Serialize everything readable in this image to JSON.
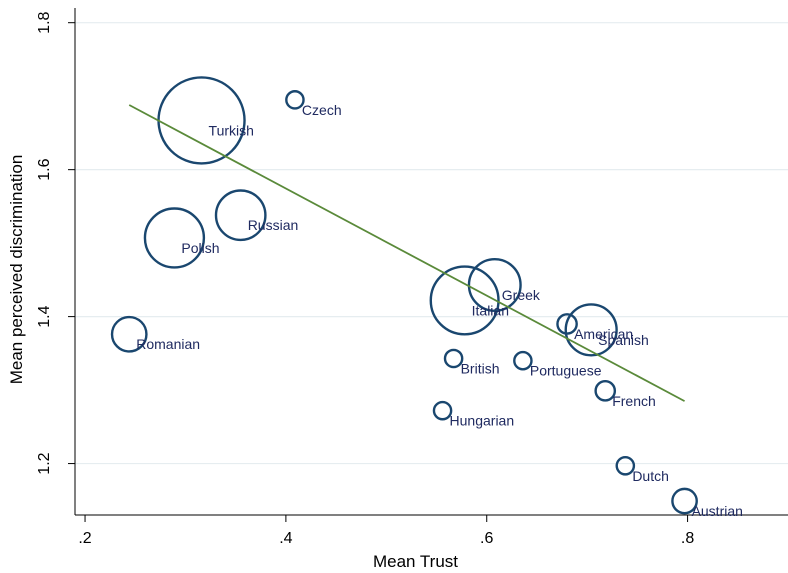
{
  "chart_data": {
    "type": "scatter",
    "xlabel": "Mean Trust",
    "ylabel": "Mean perceived discrimination",
    "xlim": [
      0.19,
      0.9
    ],
    "ylim": [
      1.13,
      1.82
    ],
    "x_ticks": [
      {
        "value": 0.2,
        "label": ".2"
      },
      {
        "value": 0.4,
        "label": ".4"
      },
      {
        "value": 0.6,
        "label": ".6"
      },
      {
        "value": 0.8,
        "label": ".8"
      }
    ],
    "y_ticks": [
      {
        "value": 1.2,
        "label": "1.2"
      },
      {
        "value": 1.4,
        "label": "1.4"
      },
      {
        "value": 1.6,
        "label": "1.6"
      },
      {
        "value": 1.8,
        "label": "1.8"
      }
    ],
    "grid": "horizontal",
    "marker_color": "#1a476f",
    "fit_line_color": "#5a8a3a",
    "fit_line": {
      "x": [
        0.244,
        0.797
      ],
      "y": [
        1.688,
        1.285
      ]
    },
    "points": [
      {
        "name": "Turkish",
        "x": 0.316,
        "y": 1.667,
        "size": 1.0
      },
      {
        "name": "Czech",
        "x": 0.409,
        "y": 1.695,
        "size": 0.04
      },
      {
        "name": "Russian",
        "x": 0.355,
        "y": 1.538,
        "size": 0.33
      },
      {
        "name": "Polish",
        "x": 0.289,
        "y": 1.507,
        "size": 0.47
      },
      {
        "name": "Romanian",
        "x": 0.244,
        "y": 1.376,
        "size": 0.16
      },
      {
        "name": "Greek",
        "x": 0.608,
        "y": 1.443,
        "size": 0.36
      },
      {
        "name": "Italian",
        "x": 0.578,
        "y": 1.422,
        "size": 0.62
      },
      {
        "name": "American",
        "x": 0.68,
        "y": 1.39,
        "size": 0.05
      },
      {
        "name": "Spanish",
        "x": 0.704,
        "y": 1.382,
        "size": 0.35
      },
      {
        "name": "British",
        "x": 0.567,
        "y": 1.343,
        "size": 0.04
      },
      {
        "name": "Portuguese",
        "x": 0.636,
        "y": 1.34,
        "size": 0.04
      },
      {
        "name": "French",
        "x": 0.718,
        "y": 1.299,
        "size": 0.05
      },
      {
        "name": "Hungarian",
        "x": 0.556,
        "y": 1.272,
        "size": 0.04
      },
      {
        "name": "Dutch",
        "x": 0.738,
        "y": 1.197,
        "size": 0.04
      },
      {
        "name": "Austrian",
        "x": 0.797,
        "y": 1.149,
        "size": 0.08
      }
    ]
  }
}
